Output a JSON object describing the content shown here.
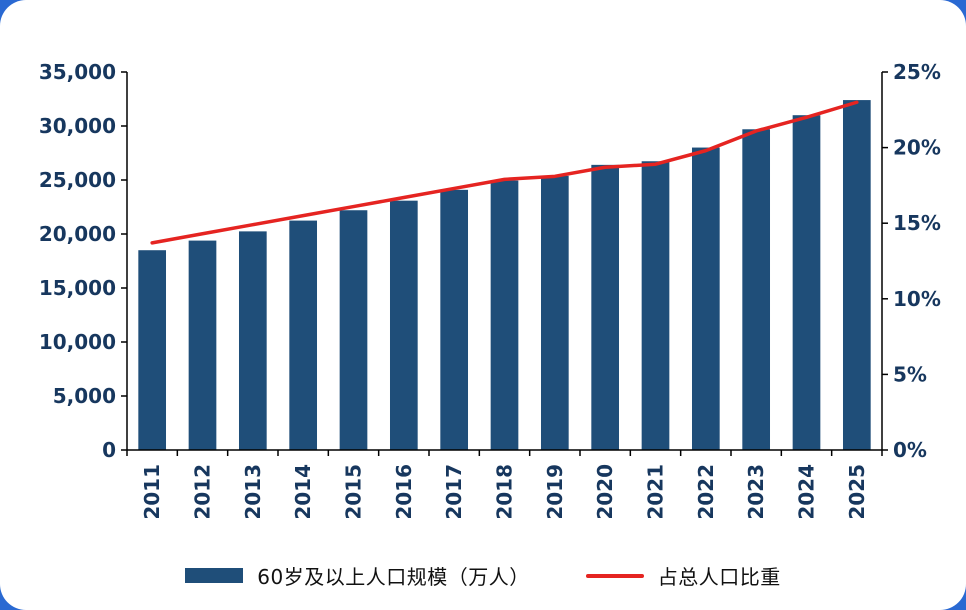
{
  "page": {
    "background_color": "#2a69d2",
    "card_color": "#ffffff"
  },
  "style": {
    "axis_color": "#000000",
    "label_color": "#17375e"
  },
  "chart_data": {
    "type": "bar",
    "subtype": "bar-with-line-overlay",
    "title": "",
    "categories": [
      "2011",
      "2012",
      "2013",
      "2014",
      "2015",
      "2016",
      "2017",
      "2018",
      "2019",
      "2020",
      "2021",
      "2022",
      "2023",
      "2024",
      "2025"
    ],
    "series": [
      {
        "name": "60岁及以上人口规模（万人）",
        "type": "bar",
        "axis": "left",
        "color": "#1F4E79",
        "values": [
          18499,
          19390,
          20243,
          21242,
          22200,
          23086,
          24090,
          24949,
          25388,
          26402,
          26736,
          28004,
          29697,
          31000,
          32400
        ]
      },
      {
        "name": "占总人口比重",
        "type": "line",
        "axis": "right",
        "color": "#e52421",
        "values": [
          13.7,
          14.3,
          14.9,
          15.5,
          16.1,
          16.7,
          17.3,
          17.9,
          18.1,
          18.7,
          18.9,
          19.8,
          21.1,
          22.0,
          23.0
        ]
      }
    ],
    "left_axis": {
      "min": 0,
      "max": 35000,
      "tick_step": 5000,
      "tick_labels": [
        "0",
        "5,000",
        "10,000",
        "15,000",
        "20,000",
        "25,000",
        "30,000",
        "35,000"
      ]
    },
    "right_axis": {
      "min": 0,
      "max": 25,
      "tick_step": 5,
      "tick_labels": [
        "0%",
        "5%",
        "10%",
        "15%",
        "20%",
        "25%"
      ]
    },
    "grid": false,
    "legend_position": "bottom",
    "x_label_rotation": -90
  },
  "legend": {
    "bar_label": "60岁及以上人口规模（万人）",
    "line_label": "占总人口比重"
  }
}
